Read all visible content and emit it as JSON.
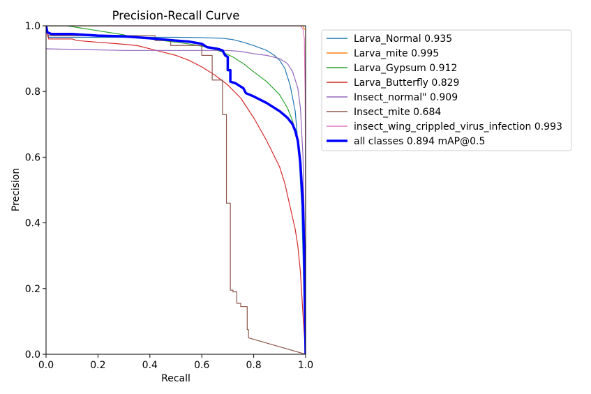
{
  "chart_data": {
    "type": "line",
    "title": "Precision-Recall Curve",
    "xlabel": "Recall",
    "ylabel": "Precision",
    "xlim": [
      0,
      1
    ],
    "ylim": [
      0,
      1
    ],
    "xticks": [
      "0.0",
      "0.2",
      "0.4",
      "0.6",
      "0.8",
      "1.0"
    ],
    "yticks": [
      "0.0",
      "0.2",
      "0.4",
      "0.6",
      "0.8",
      "1.0"
    ],
    "grid": false,
    "legend_position": "outside-right",
    "series": [
      {
        "name": "Larva_Normal 0.935",
        "color": "#1f77b4",
        "points": [
          [
            0,
            1.0
          ],
          [
            0.003,
            0.99
          ],
          [
            0.01,
            0.965
          ],
          [
            0.3,
            0.965
          ],
          [
            0.5,
            0.965
          ],
          [
            0.6,
            0.964
          ],
          [
            0.68,
            0.962
          ],
          [
            0.72,
            0.958
          ],
          [
            0.76,
            0.95
          ],
          [
            0.8,
            0.94
          ],
          [
            0.85,
            0.925
          ],
          [
            0.88,
            0.91
          ],
          [
            0.9,
            0.895
          ],
          [
            0.92,
            0.87
          ],
          [
            0.94,
            0.82
          ],
          [
            0.96,
            0.74
          ],
          [
            0.975,
            0.6
          ],
          [
            0.985,
            0.45
          ],
          [
            0.99,
            0.3
          ],
          [
            0.995,
            0.1
          ],
          [
            1.0,
            0.0
          ]
        ]
      },
      {
        "name": "Larva_mite 0.995",
        "color": "#ff7f0e",
        "points": [
          [
            0,
            1.0
          ],
          [
            0.99,
            1.0
          ],
          [
            0.995,
            0.99
          ],
          [
            1.0,
            0.99
          ],
          [
            1.0,
            0.0
          ]
        ]
      },
      {
        "name": "Larva_Gypsum 0.912",
        "color": "#2ca02c",
        "points": [
          [
            0,
            1.0
          ],
          [
            0.08,
            1.0
          ],
          [
            0.12,
            0.995
          ],
          [
            0.2,
            0.985
          ],
          [
            0.28,
            0.975
          ],
          [
            0.35,
            0.965
          ],
          [
            0.45,
            0.955
          ],
          [
            0.55,
            0.945
          ],
          [
            0.62,
            0.935
          ],
          [
            0.68,
            0.92
          ],
          [
            0.72,
            0.905
          ],
          [
            0.76,
            0.885
          ],
          [
            0.8,
            0.86
          ],
          [
            0.85,
            0.83
          ],
          [
            0.9,
            0.79
          ],
          [
            0.93,
            0.75
          ],
          [
            0.95,
            0.71
          ],
          [
            0.97,
            0.64
          ],
          [
            0.98,
            0.58
          ],
          [
            0.99,
            0.45
          ],
          [
            0.995,
            0.3
          ],
          [
            1.0,
            0.0
          ]
        ]
      },
      {
        "name": "Larva_Butterfly 0.829",
        "color": "#d62728",
        "points": [
          [
            0,
            1.0
          ],
          [
            0.005,
            0.975
          ],
          [
            0.01,
            0.96
          ],
          [
            0.1,
            0.96
          ],
          [
            0.12,
            0.955
          ],
          [
            0.2,
            0.95
          ],
          [
            0.28,
            0.945
          ],
          [
            0.35,
            0.94
          ],
          [
            0.4,
            0.93
          ],
          [
            0.45,
            0.92
          ],
          [
            0.5,
            0.91
          ],
          [
            0.55,
            0.895
          ],
          [
            0.6,
            0.875
          ],
          [
            0.65,
            0.85
          ],
          [
            0.7,
            0.82
          ],
          [
            0.75,
            0.78
          ],
          [
            0.8,
            0.72
          ],
          [
            0.85,
            0.65
          ],
          [
            0.9,
            0.57
          ],
          [
            0.92,
            0.52
          ],
          [
            0.94,
            0.45
          ],
          [
            0.96,
            0.38
          ],
          [
            0.97,
            0.33
          ],
          [
            0.98,
            0.25
          ],
          [
            0.99,
            0.12
          ],
          [
            1.0,
            0.0
          ]
        ]
      },
      {
        "name": "Insect_normal\" 0.909",
        "color": "#9467bd",
        "points": [
          [
            0,
            0.93
          ],
          [
            0.3,
            0.925
          ],
          [
            0.5,
            0.925
          ],
          [
            0.6,
            0.925
          ],
          [
            0.7,
            0.925
          ],
          [
            0.75,
            0.922
          ],
          [
            0.8,
            0.915
          ],
          [
            0.85,
            0.91
          ],
          [
            0.9,
            0.9
          ],
          [
            0.93,
            0.885
          ],
          [
            0.95,
            0.86
          ],
          [
            0.97,
            0.81
          ],
          [
            0.98,
            0.75
          ],
          [
            0.99,
            0.6
          ],
          [
            0.995,
            0.4
          ],
          [
            1.0,
            0.0
          ]
        ]
      },
      {
        "name": "Insect_mite 0.684",
        "color": "#8c564b",
        "points": [
          [
            0,
            1.0
          ],
          [
            0.005,
            0.98
          ],
          [
            0.01,
            0.97
          ],
          [
            0.42,
            0.97
          ],
          [
            0.42,
            0.955
          ],
          [
            0.48,
            0.955
          ],
          [
            0.48,
            0.94
          ],
          [
            0.6,
            0.94
          ],
          [
            0.6,
            0.91
          ],
          [
            0.64,
            0.91
          ],
          [
            0.64,
            0.835
          ],
          [
            0.68,
            0.835
          ],
          [
            0.68,
            0.73
          ],
          [
            0.695,
            0.73
          ],
          [
            0.695,
            0.46
          ],
          [
            0.71,
            0.46
          ],
          [
            0.71,
            0.195
          ],
          [
            0.72,
            0.195
          ],
          [
            0.72,
            0.19
          ],
          [
            0.735,
            0.19
          ],
          [
            0.735,
            0.155
          ],
          [
            0.75,
            0.155
          ],
          [
            0.75,
            0.145
          ],
          [
            0.775,
            0.145
          ],
          [
            0.775,
            0.075
          ],
          [
            0.78,
            0.075
          ],
          [
            0.78,
            0.05
          ],
          [
            1.0,
            0.0
          ]
        ]
      },
      {
        "name": "insect_wing_crippled_virus_infection 0.993",
        "color": "#e377c2",
        "points": [
          [
            0,
            1.0
          ],
          [
            0.98,
            1.0
          ],
          [
            0.985,
            0.995
          ],
          [
            0.99,
            0.99
          ],
          [
            0.995,
            0.96
          ],
          [
            0.998,
            0.8
          ],
          [
            1.0,
            0.5
          ],
          [
            1.0,
            0.0
          ]
        ]
      },
      {
        "name": "all classes 0.894 mAP@0.5",
        "color": "#0000ff",
        "thick": true,
        "points": [
          [
            0,
            1.0
          ],
          [
            0.005,
            0.98
          ],
          [
            0.02,
            0.975
          ],
          [
            0.1,
            0.975
          ],
          [
            0.2,
            0.97
          ],
          [
            0.3,
            0.968
          ],
          [
            0.4,
            0.962
          ],
          [
            0.5,
            0.955
          ],
          [
            0.55,
            0.952
          ],
          [
            0.6,
            0.945
          ],
          [
            0.62,
            0.935
          ],
          [
            0.66,
            0.93
          ],
          [
            0.68,
            0.925
          ],
          [
            0.69,
            0.91
          ],
          [
            0.7,
            0.905
          ],
          [
            0.7,
            0.865
          ],
          [
            0.71,
            0.865
          ],
          [
            0.71,
            0.83
          ],
          [
            0.73,
            0.825
          ],
          [
            0.76,
            0.81
          ],
          [
            0.77,
            0.795
          ],
          [
            0.8,
            0.785
          ],
          [
            0.85,
            0.765
          ],
          [
            0.9,
            0.74
          ],
          [
            0.93,
            0.72
          ],
          [
            0.95,
            0.7
          ],
          [
            0.96,
            0.68
          ],
          [
            0.97,
            0.65
          ],
          [
            0.98,
            0.58
          ],
          [
            0.99,
            0.45
          ],
          [
            0.995,
            0.3
          ],
          [
            1.0,
            0.0
          ]
        ]
      }
    ]
  }
}
